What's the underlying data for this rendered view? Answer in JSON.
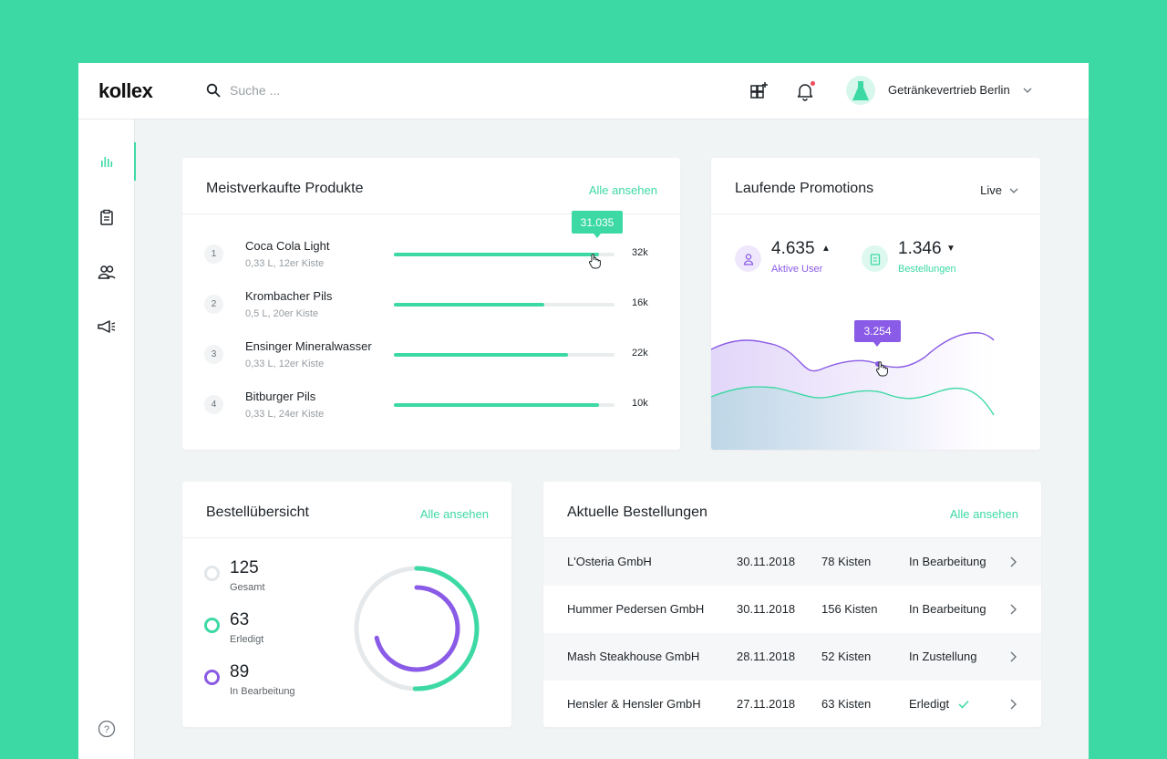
{
  "header": {
    "logo": "kollex",
    "search_placeholder": "Suche ...",
    "company": "Getränkevertrieb Berlin"
  },
  "sidebar": {
    "items": [
      "analytics",
      "orders",
      "customers",
      "promotions"
    ],
    "active": "analytics"
  },
  "top_products": {
    "title": "Meistverkaufte Produkte",
    "link": "Alle ansehen",
    "tooltip": "31.035",
    "items": [
      {
        "rank": "1",
        "name": "Coca Cola Light",
        "sub": "0,33 L, 12er Kiste",
        "value": "32k",
        "fill": 0.93
      },
      {
        "rank": "2",
        "name": "Krombacher Pils",
        "sub": "0,5 L, 20er Kiste",
        "value": "16k",
        "fill": 0.68
      },
      {
        "rank": "3",
        "name": "Ensinger Mineralwasser",
        "sub": "0,33 L, 12er Kiste",
        "value": "22k",
        "fill": 0.79
      },
      {
        "rank": "4",
        "name": "Bitburger Pils",
        "sub": "0,33 L, 24er Kiste",
        "value": "10k",
        "fill": 0.93
      }
    ]
  },
  "promotions": {
    "title": "Laufende Promotions",
    "filter": "Live",
    "active_users": {
      "value": "4.635",
      "label": "Aktive User",
      "trend": "▲"
    },
    "orders": {
      "value": "1.346",
      "label": "Bestellungen",
      "trend": "▼"
    },
    "tooltip": "3.254"
  },
  "order_overview": {
    "title": "Bestellübersicht",
    "link": "Alle ansehen",
    "total": {
      "value": "125",
      "label": "Gesamt"
    },
    "done": {
      "value": "63",
      "label": "Erledigt"
    },
    "in_progress": {
      "value": "89",
      "label": "In Bearbeitung"
    }
  },
  "recent_orders": {
    "title": "Aktuelle Bestellungen",
    "link": "Alle ansehen",
    "rows": [
      {
        "customer": "L'Osteria GmbH",
        "date": "30.11.2018",
        "qty": "78 Kisten",
        "status": "In Bearbeitung",
        "done": false
      },
      {
        "customer": "Hummer Pedersen GmbH",
        "date": "30.11.2018",
        "qty": "156 Kisten",
        "status": "In Bearbeitung",
        "done": false
      },
      {
        "customer": "Mash Steakhouse GmbH",
        "date": "28.11.2018",
        "qty": "52 Kisten",
        "status": "In Zustellung",
        "done": false
      },
      {
        "customer": "Hensler & Hensler GmbH",
        "date": "27.11.2018",
        "qty": "63 Kisten",
        "status": "Erledigt",
        "done": true
      }
    ]
  },
  "colors": {
    "accent": "#3dd9a4",
    "purple": "#8a5be6"
  }
}
